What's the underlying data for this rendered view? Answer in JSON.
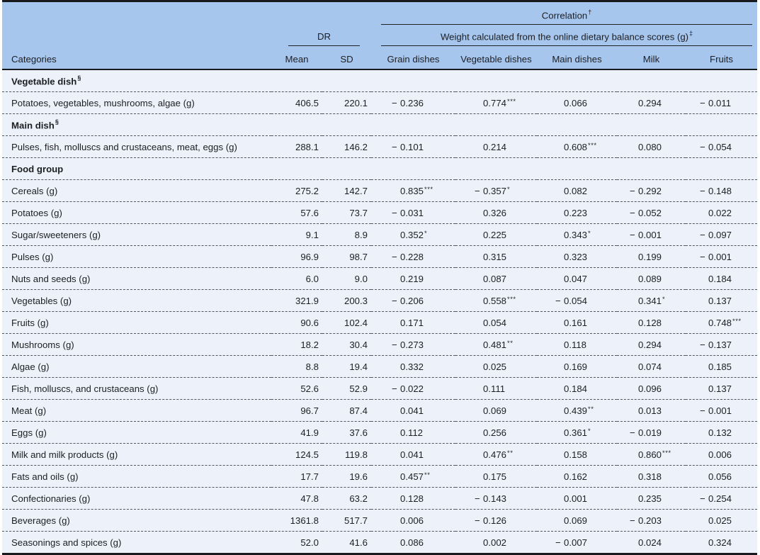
{
  "colors": {
    "header_bg": "#a6c6ee",
    "row_bg": "#edf2fa",
    "rule_dark": "#17191d",
    "dashed_line": "#53565c",
    "text": "#1d1e22"
  },
  "header": {
    "categories": "Categories",
    "dr": "DR",
    "mean": "Mean",
    "sd": "SD",
    "correlation": {
      "text": "Correlation",
      "sup": "†"
    },
    "weight": {
      "text": "Weight calculated from the online dietary balance scores (g)",
      "sup": "‡"
    },
    "corr_columns": [
      "Grain dishes",
      "Vegetable dishes",
      "Main dishes",
      "Milk",
      "Fruits"
    ]
  },
  "table": {
    "rows": [
      {
        "type": "section",
        "label": "Vegetable dish",
        "sup": "§"
      },
      {
        "type": "data",
        "category": "Potatoes, vegetables, mushrooms, algae (g)",
        "mean": "406.5",
        "sd": "220.1",
        "corr": [
          {
            "sign": "−",
            "num": "0.236",
            "stars": ""
          },
          {
            "sign": "",
            "num": "0.774",
            "stars": "***"
          },
          {
            "sign": "",
            "num": "0.066",
            "stars": ""
          },
          {
            "sign": "",
            "num": "0.294",
            "stars": ""
          },
          {
            "sign": "−",
            "num": "0.011",
            "stars": ""
          }
        ]
      },
      {
        "type": "section",
        "label": "Main dish",
        "sup": "§"
      },
      {
        "type": "data",
        "category": "Pulses, fish, molluscs and crustaceans, meat, eggs (g)",
        "mean": "288.1",
        "sd": "146.2",
        "corr": [
          {
            "sign": "−",
            "num": "0.101",
            "stars": ""
          },
          {
            "sign": "",
            "num": "0.214",
            "stars": ""
          },
          {
            "sign": "",
            "num": "0.608",
            "stars": "***"
          },
          {
            "sign": "",
            "num": "0.080",
            "stars": ""
          },
          {
            "sign": "−",
            "num": "0.054",
            "stars": ""
          }
        ]
      },
      {
        "type": "section",
        "label": "Food group",
        "sup": ""
      },
      {
        "type": "data",
        "category": "Cereals (g)",
        "mean": "275.2",
        "sd": "142.7",
        "corr": [
          {
            "sign": "",
            "num": "0.835",
            "stars": "***"
          },
          {
            "sign": "−",
            "num": "0.357",
            "stars": "*"
          },
          {
            "sign": "",
            "num": "0.082",
            "stars": ""
          },
          {
            "sign": "−",
            "num": "0.292",
            "stars": ""
          },
          {
            "sign": "−",
            "num": "0.148",
            "stars": ""
          }
        ]
      },
      {
        "type": "data",
        "category": "Potatoes (g)",
        "mean": "57.6",
        "sd": "73.7",
        "corr": [
          {
            "sign": "−",
            "num": "0.031",
            "stars": ""
          },
          {
            "sign": "",
            "num": "0.326",
            "stars": ""
          },
          {
            "sign": "",
            "num": "0.223",
            "stars": ""
          },
          {
            "sign": "−",
            "num": "0.052",
            "stars": ""
          },
          {
            "sign": "",
            "num": "0.022",
            "stars": ""
          }
        ]
      },
      {
        "type": "data",
        "category": "Sugar/sweeteners (g)",
        "mean": "9.1",
        "sd": "8.9",
        "corr": [
          {
            "sign": "",
            "num": "0.352",
            "stars": "*"
          },
          {
            "sign": "",
            "num": "0.225",
            "stars": ""
          },
          {
            "sign": "",
            "num": "0.343",
            "stars": "*"
          },
          {
            "sign": "−",
            "num": "0.001",
            "stars": ""
          },
          {
            "sign": "−",
            "num": "0.097",
            "stars": ""
          }
        ]
      },
      {
        "type": "data",
        "category": "Pulses (g)",
        "mean": "96.9",
        "sd": "98.7",
        "corr": [
          {
            "sign": "−",
            "num": "0.228",
            "stars": ""
          },
          {
            "sign": "",
            "num": "0.315",
            "stars": ""
          },
          {
            "sign": "",
            "num": "0.323",
            "stars": ""
          },
          {
            "sign": "",
            "num": "0.199",
            "stars": ""
          },
          {
            "sign": "−",
            "num": "0.001",
            "stars": ""
          }
        ]
      },
      {
        "type": "data",
        "category": "Nuts and seeds (g)",
        "mean": "6.0",
        "sd": "9.0",
        "corr": [
          {
            "sign": "",
            "num": "0.219",
            "stars": ""
          },
          {
            "sign": "",
            "num": "0.087",
            "stars": ""
          },
          {
            "sign": "",
            "num": "0.047",
            "stars": ""
          },
          {
            "sign": "",
            "num": "0.089",
            "stars": ""
          },
          {
            "sign": "",
            "num": "0.184",
            "stars": ""
          }
        ]
      },
      {
        "type": "data",
        "category": "Vegetables (g)",
        "mean": "321.9",
        "sd": "200.3",
        "corr": [
          {
            "sign": "−",
            "num": "0.206",
            "stars": ""
          },
          {
            "sign": "",
            "num": "0.558",
            "stars": "***"
          },
          {
            "sign": "−",
            "num": "0.054",
            "stars": ""
          },
          {
            "sign": "",
            "num": "0.341",
            "stars": "*"
          },
          {
            "sign": "",
            "num": "0.137",
            "stars": ""
          }
        ]
      },
      {
        "type": "data",
        "category": "Fruits (g)",
        "mean": "90.6",
        "sd": "102.4",
        "corr": [
          {
            "sign": "",
            "num": "0.171",
            "stars": ""
          },
          {
            "sign": "",
            "num": "0.054",
            "stars": ""
          },
          {
            "sign": "",
            "num": "0.161",
            "stars": ""
          },
          {
            "sign": "",
            "num": "0.128",
            "stars": ""
          },
          {
            "sign": "",
            "num": "0.748",
            "stars": "***"
          }
        ]
      },
      {
        "type": "data",
        "category": "Mushrooms (g)",
        "mean": "18.2",
        "sd": "30.4",
        "corr": [
          {
            "sign": "−",
            "num": "0.273",
            "stars": ""
          },
          {
            "sign": "",
            "num": "0.481",
            "stars": "**"
          },
          {
            "sign": "",
            "num": "0.118",
            "stars": ""
          },
          {
            "sign": "",
            "num": "0.294",
            "stars": ""
          },
          {
            "sign": "−",
            "num": "0.137",
            "stars": ""
          }
        ]
      },
      {
        "type": "data",
        "category": "Algae (g)",
        "mean": "8.8",
        "sd": "19.4",
        "corr": [
          {
            "sign": "",
            "num": "0.332",
            "stars": ""
          },
          {
            "sign": "",
            "num": "0.025",
            "stars": ""
          },
          {
            "sign": "",
            "num": "0.169",
            "stars": ""
          },
          {
            "sign": "",
            "num": "0.074",
            "stars": ""
          },
          {
            "sign": "",
            "num": "0.185",
            "stars": ""
          }
        ]
      },
      {
        "type": "data",
        "category": "Fish, molluscs, and crustaceans (g)",
        "mean": "52.6",
        "sd": "52.9",
        "corr": [
          {
            "sign": "−",
            "num": "0.022",
            "stars": ""
          },
          {
            "sign": "",
            "num": "0.111",
            "stars": ""
          },
          {
            "sign": "",
            "num": "0.184",
            "stars": ""
          },
          {
            "sign": "",
            "num": "0.096",
            "stars": ""
          },
          {
            "sign": "",
            "num": "0.137",
            "stars": ""
          }
        ]
      },
      {
        "type": "data",
        "category": "Meat (g)",
        "mean": "96.7",
        "sd": "87.4",
        "corr": [
          {
            "sign": "",
            "num": "0.041",
            "stars": ""
          },
          {
            "sign": "",
            "num": "0.069",
            "stars": ""
          },
          {
            "sign": "",
            "num": "0.439",
            "stars": "**"
          },
          {
            "sign": "",
            "num": "0.013",
            "stars": ""
          },
          {
            "sign": "−",
            "num": "0.001",
            "stars": ""
          }
        ]
      },
      {
        "type": "data",
        "category": "Eggs (g)",
        "mean": "41.9",
        "sd": "37.6",
        "corr": [
          {
            "sign": "",
            "num": "0.112",
            "stars": ""
          },
          {
            "sign": "",
            "num": "0.256",
            "stars": ""
          },
          {
            "sign": "",
            "num": "0.361",
            "stars": "*"
          },
          {
            "sign": "−",
            "num": "0.019",
            "stars": ""
          },
          {
            "sign": "",
            "num": "0.132",
            "stars": ""
          }
        ]
      },
      {
        "type": "data",
        "category": "Milk and milk products (g)",
        "mean": "124.5",
        "sd": "119.8",
        "corr": [
          {
            "sign": "",
            "num": "0.041",
            "stars": ""
          },
          {
            "sign": "",
            "num": "0.476",
            "stars": "**"
          },
          {
            "sign": "",
            "num": "0.158",
            "stars": ""
          },
          {
            "sign": "",
            "num": "0.860",
            "stars": "***"
          },
          {
            "sign": "",
            "num": "0.006",
            "stars": ""
          }
        ]
      },
      {
        "type": "data",
        "category": "Fats and oils (g)",
        "mean": "17.7",
        "sd": "19.6",
        "corr": [
          {
            "sign": "",
            "num": "0.457",
            "stars": "**"
          },
          {
            "sign": "",
            "num": "0.175",
            "stars": ""
          },
          {
            "sign": "",
            "num": "0.162",
            "stars": ""
          },
          {
            "sign": "",
            "num": "0.318",
            "stars": ""
          },
          {
            "sign": "",
            "num": "0.056",
            "stars": ""
          }
        ]
      },
      {
        "type": "data",
        "category": "Confectionaries (g)",
        "mean": "47.8",
        "sd": "63.2",
        "corr": [
          {
            "sign": "",
            "num": "0.128",
            "stars": ""
          },
          {
            "sign": "−",
            "num": "0.143",
            "stars": ""
          },
          {
            "sign": "",
            "num": "0.001",
            "stars": ""
          },
          {
            "sign": "",
            "num": "0.235",
            "stars": ""
          },
          {
            "sign": "−",
            "num": "0.254",
            "stars": ""
          }
        ]
      },
      {
        "type": "data",
        "category": "Beverages (g)",
        "mean": "1361.8",
        "sd": "517.7",
        "corr": [
          {
            "sign": "",
            "num": "0.006",
            "stars": ""
          },
          {
            "sign": "−",
            "num": "0.126",
            "stars": ""
          },
          {
            "sign": "",
            "num": "0.069",
            "stars": ""
          },
          {
            "sign": "−",
            "num": "0.203",
            "stars": ""
          },
          {
            "sign": "",
            "num": "0.025",
            "stars": ""
          }
        ]
      },
      {
        "type": "data",
        "category": "Seasonings and spices (g)",
        "mean": "52.0",
        "sd": "41.6",
        "corr": [
          {
            "sign": "",
            "num": "0.086",
            "stars": ""
          },
          {
            "sign": "",
            "num": "0.002",
            "stars": ""
          },
          {
            "sign": "−",
            "num": "0.007",
            "stars": ""
          },
          {
            "sign": "",
            "num": "0.024",
            "stars": ""
          },
          {
            "sign": "",
            "num": "0.324",
            "stars": ""
          }
        ]
      }
    ]
  }
}
